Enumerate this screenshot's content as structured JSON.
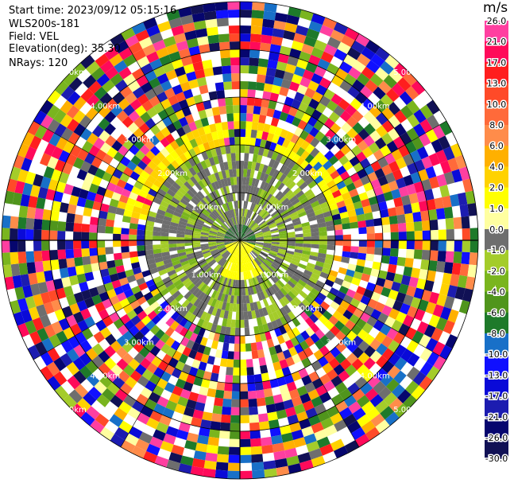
{
  "header": {
    "start_time": "Start time: 2023/09/12 05:15:16",
    "site": "WLS200s-181",
    "field": "Field: VEL",
    "elevation": "Elevation(deg): 35.30",
    "nrays": "NRays: 120"
  },
  "chart_data": {
    "type": "ppi",
    "unit": "m/s",
    "colorbar": {
      "ticks": [
        "26.0",
        "21.0",
        "17.0",
        "13.0",
        "10.0",
        "8.0",
        "6.0",
        "4.0",
        "2.0",
        "1.0",
        "0.0",
        "-1.0",
        "-2.0",
        "-4.0",
        "-6.0",
        "-8.0",
        "-10.0",
        "-13.0",
        "-17.0",
        "-21.0",
        "-26.0",
        "-30.0"
      ],
      "colors": [
        "#ff3fa0",
        "#ff0a5a",
        "#ff1e1e",
        "#ff4a28",
        "#ff6a3a",
        "#ff8c4a",
        "#ffb000",
        "#ffd200",
        "#ffff00",
        "#ffffa0",
        "#6e6e6e",
        "#a4cc2a",
        "#7ab51e",
        "#50951c",
        "#1e7a2a",
        "#1870c8",
        "#1010ff",
        "#0a0ad8",
        "#1c1cb0",
        "#06066e",
        "#111155"
      ]
    },
    "range_ring_labels": [
      "1.00km",
      "2.00km",
      "3.00km",
      "4.00km",
      "5.00km"
    ],
    "rays": 120
  }
}
